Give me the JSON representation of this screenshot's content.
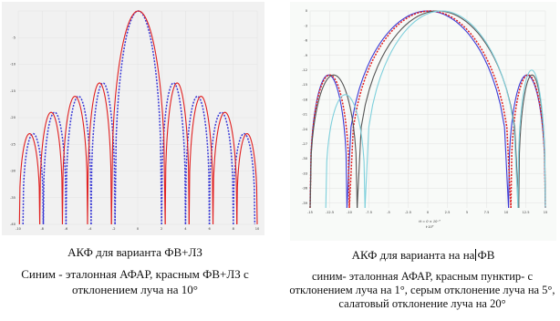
{
  "captions": {
    "left_title": "АКФ для варианта ФВ+ЛЗ",
    "left_desc": "Синим - эталонная АФАР, красным ФВ+ЛЗ с отклонением луча на 10°",
    "right_title_before": "АКФ для варианта на на",
    "right_title_after": "ФВ",
    "right_desc": "синим- эталонная АФАР, красным пунктир- с отклонением луча на 1°, серым отклонение луча на 5°, салатовый отклонение луча на 20°"
  },
  "chart_data": [
    {
      "type": "line",
      "title": "",
      "xlim": [
        -10,
        10
      ],
      "ylim": [
        -40,
        0
      ],
      "x_ticks": [
        -10,
        -8,
        -6,
        -4,
        -2,
        0,
        2,
        4,
        6,
        8,
        10
      ],
      "y_ticks": [
        0,
        -5,
        -10,
        -15,
        -20,
        -25,
        -30,
        -35,
        -40
      ],
      "y_tick_labels": [
        "",
        "-5",
        "-10",
        "-15",
        "-20",
        "-25",
        "-30",
        "-35",
        "-40"
      ],
      "grid": true,
      "colors": {
        "reference": "#3b3bd6",
        "fv_lz": "#e02020"
      },
      "series": [
        {
          "style": "dashed",
          "color": "#3b3bd6",
          "lobes": [
            {
              "x0": -9.6,
              "x1": -7.9,
              "peak": -23
            },
            {
              "x0": -7.9,
              "x1": -6.0,
              "peak": -19
            },
            {
              "x0": -6.0,
              "x1": -3.9,
              "peak": -16
            },
            {
              "x0": -3.9,
              "x1": -1.9,
              "peak": -13.5
            },
            {
              "x0": -1.9,
              "x1": 2.0,
              "peak": 0
            },
            {
              "x0": 2.0,
              "x1": 4.0,
              "peak": -13.5
            },
            {
              "x0": 4.0,
              "x1": 6.0,
              "peak": -16
            },
            {
              "x0": 6.0,
              "x1": 8.0,
              "peak": -19
            },
            {
              "x0": 8.0,
              "x1": 9.8,
              "peak": -23
            }
          ]
        },
        {
          "style": "solid",
          "color": "#e02020",
          "lobes": [
            {
              "x0": -9.9,
              "x1": -8.2,
              "peak": -23
            },
            {
              "x0": -8.2,
              "x1": -6.3,
              "peak": -19
            },
            {
              "x0": -6.3,
              "x1": -4.2,
              "peak": -16
            },
            {
              "x0": -4.2,
              "x1": -2.2,
              "peak": -13.5
            },
            {
              "x0": -2.2,
              "x1": 2.3,
              "peak": 0
            },
            {
              "x0": 2.3,
              "x1": 4.3,
              "peak": -13.5
            },
            {
              "x0": 4.3,
              "x1": 6.3,
              "peak": -16
            },
            {
              "x0": 6.3,
              "x1": 8.3,
              "peak": -19
            },
            {
              "x0": 8.3,
              "x1": 10.0,
              "peak": -23
            }
          ]
        }
      ]
    },
    {
      "type": "line",
      "title": "",
      "xlabel": "t·10⁹",
      "annotation": "tt = 0 × 10⁻⁹",
      "xlim": [
        -15,
        15
      ],
      "ylim": [
        -40,
        0
      ],
      "x_ticks": [
        -15,
        -12.5,
        -10,
        -7.5,
        -5,
        -2.5,
        0,
        2.5,
        5,
        7.5,
        10,
        12.5,
        15
      ],
      "y_ticks": [
        0,
        -3,
        -6,
        -9,
        -12,
        -15,
        -18,
        -21,
        -24,
        -27,
        -30,
        -33,
        -36,
        -39
      ],
      "grid": true,
      "colors": {
        "reference": "#3b3bd6",
        "dev1": "#e02020",
        "dev5": "#555555",
        "dev20": "#7fd0dc"
      },
      "series": [
        {
          "color": "#3b3bd6",
          "style": "solid",
          "lobes": [
            {
              "x0": -15,
              "x1": -10.3,
              "peak": -13
            },
            {
              "x0": -10.3,
              "x1": 10.3,
              "peak": 0
            },
            {
              "x0": 10.3,
              "x1": 15,
              "peak": -13
            }
          ]
        },
        {
          "color": "#e02020",
          "style": "dashed",
          "lobes": [
            {
              "x0": -15,
              "x1": -10.0,
              "peak": -13
            },
            {
              "x0": -10.0,
              "x1": 10.6,
              "peak": 0
            },
            {
              "x0": 10.6,
              "x1": 15,
              "peak": -13
            }
          ]
        },
        {
          "color": "#555555",
          "style": "solid",
          "lobes": [
            {
              "x0": -15,
              "x1": -9.0,
              "peak": -13
            },
            {
              "x0": -9.0,
              "x1": 11.6,
              "peak": 0
            },
            {
              "x0": 11.6,
              "x1": 15,
              "peak": -13
            }
          ]
        },
        {
          "color": "#7fd0dc",
          "style": "solid",
          "lobes": [
            {
              "x0": -13.0,
              "x1": -8.0,
              "peak": -17
            },
            {
              "x0": -8.0,
              "x1": 11.5,
              "peak": 0
            },
            {
              "x0": 11.5,
              "x1": 15,
              "peak": -12
            }
          ]
        }
      ]
    }
  ]
}
